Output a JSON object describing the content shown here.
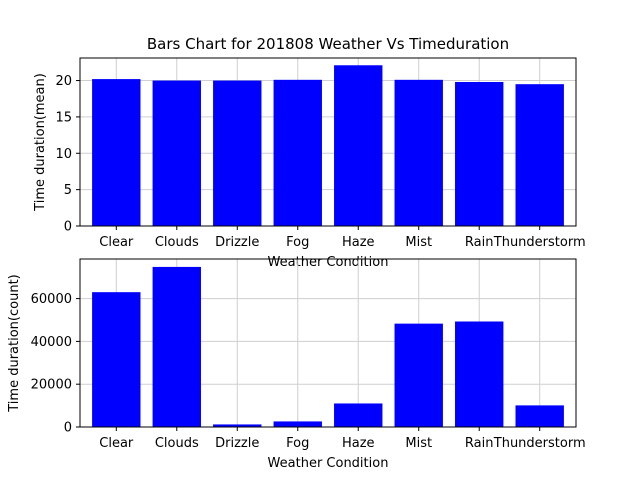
{
  "chart_data": [
    {
      "type": "bar",
      "title": "Bars Chart for 201808 Weather Vs Timeduration",
      "xlabel": "Weather Condition",
      "ylabel": "Time duration(mean)",
      "categories": [
        "Clear",
        "Clouds",
        "Drizzle",
        "Fog",
        "Haze",
        "Mist",
        "Rain",
        "Thunderstorm"
      ],
      "values": [
        20.2,
        20.0,
        20.0,
        20.1,
        22.1,
        20.1,
        19.8,
        19.5
      ],
      "ylim": [
        0,
        23.1
      ],
      "yticks": [
        0,
        5,
        10,
        15,
        20
      ],
      "bar_color": "#0000ff",
      "grid": true
    },
    {
      "type": "bar",
      "title": "",
      "xlabel": "Weather Condition",
      "ylabel": "Time duration(count)",
      "categories": [
        "Clear",
        "Clouds",
        "Drizzle",
        "Fog",
        "Haze",
        "Mist",
        "Rain",
        "Thunderstorm"
      ],
      "values": [
        63000,
        74800,
        1200,
        2600,
        11000,
        48300,
        49300,
        10100
      ],
      "ylim": [
        0,
        78500
      ],
      "yticks": [
        0,
        20000,
        40000,
        60000
      ],
      "bar_color": "#0000ff",
      "grid": true
    }
  ]
}
